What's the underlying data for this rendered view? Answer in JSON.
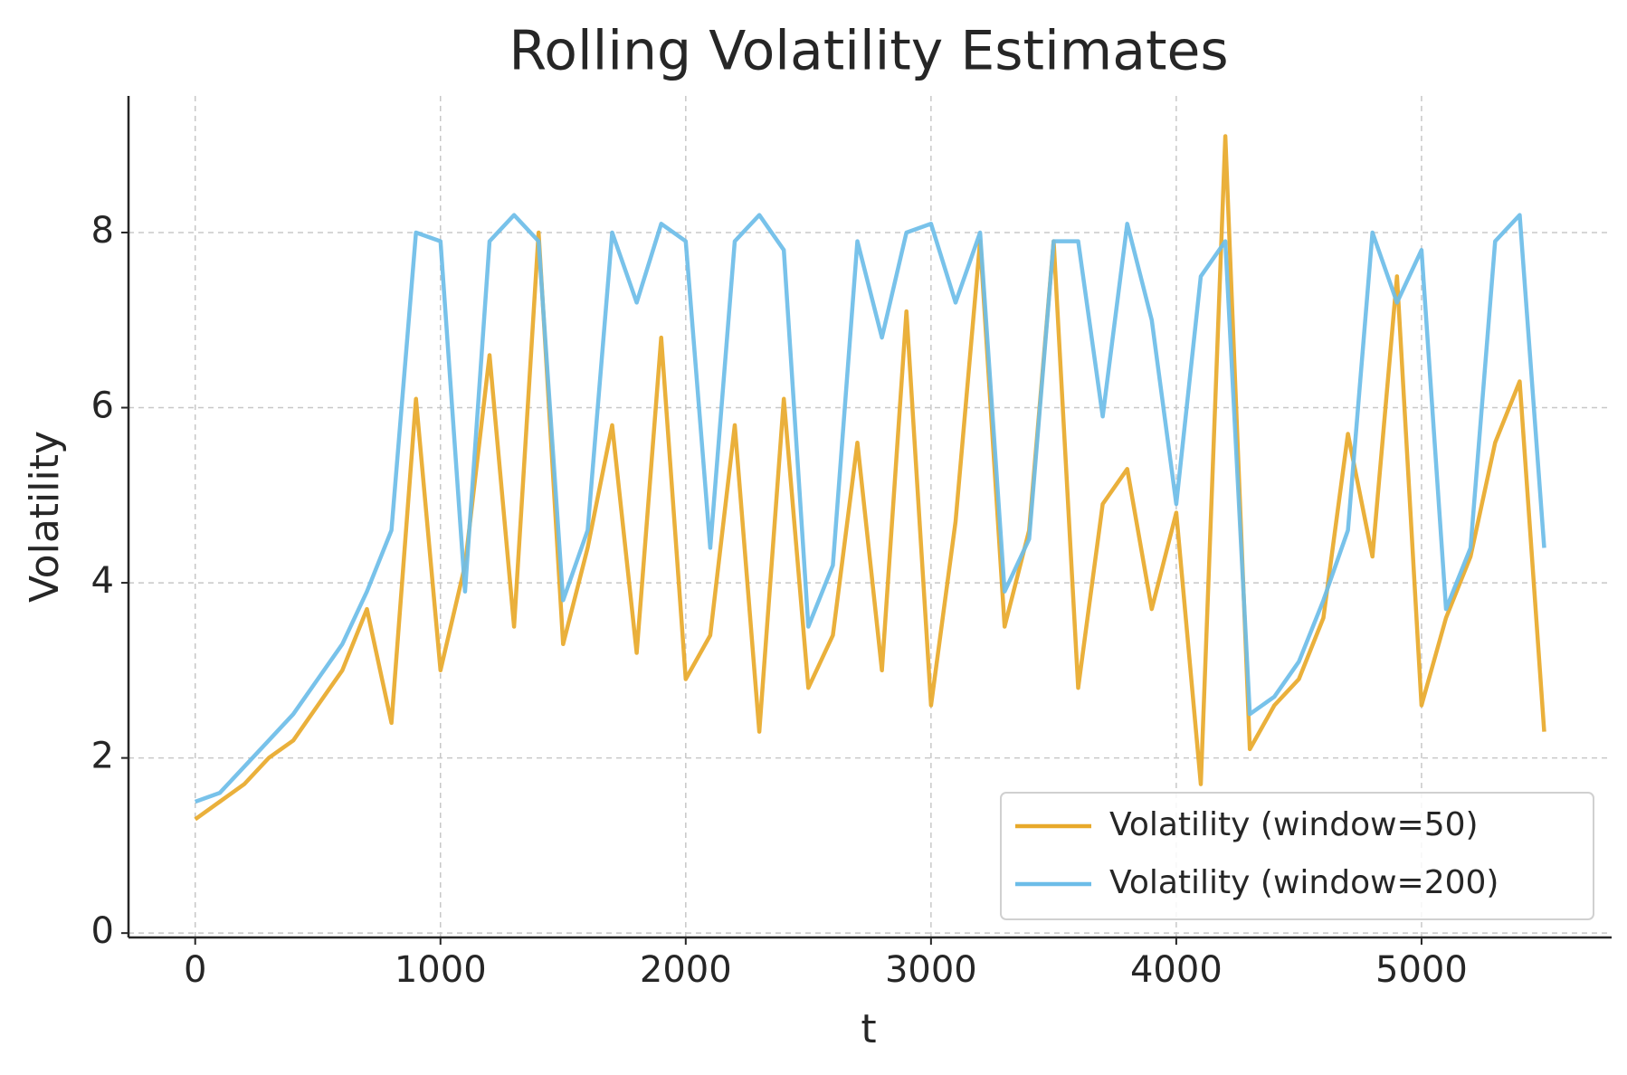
{
  "chart_data": {
    "type": "line",
    "title": "Rolling Volatility Estimates",
    "x_label": "t",
    "y_label": "Volatility",
    "x": [
      0,
      100,
      200,
      300,
      400,
      500,
      600,
      700,
      800,
      900,
      1000,
      1100,
      1200,
      1300,
      1400,
      1500,
      1600,
      1700,
      1800,
      1900,
      2000,
      2100,
      2200,
      2300,
      2400,
      2500,
      2600,
      2700,
      2800,
      2900,
      3000,
      3100,
      3200,
      3300,
      3400,
      3500,
      3600,
      3700,
      3800,
      3900,
      4000,
      4100,
      4200,
      4300,
      4400,
      4500,
      4600,
      4700,
      4800,
      4900,
      5000,
      5100,
      5200,
      5300,
      5400,
      5500
    ],
    "series": [
      {
        "name": "Volatility (window=50)",
        "color": "#E8A92A",
        "values": [
          1.3,
          1.5,
          1.7,
          2.0,
          2.2,
          2.6,
          3.0,
          3.7,
          2.4,
          6.1,
          3.0,
          4.2,
          6.6,
          3.5,
          8.0,
          3.3,
          4.4,
          5.8,
          3.2,
          6.8,
          2.9,
          3.4,
          5.8,
          2.3,
          6.1,
          2.8,
          3.4,
          5.6,
          3.0,
          7.1,
          2.6,
          4.7,
          7.9,
          3.5,
          4.6,
          7.9,
          2.8,
          4.9,
          5.3,
          3.7,
          4.8,
          1.7,
          9.1,
          2.1,
          2.6,
          2.9,
          3.6,
          5.7,
          4.3,
          7.5,
          2.6,
          3.6,
          4.3,
          5.6,
          6.3,
          2.3
        ]
      },
      {
        "name": "Volatility (window=200)",
        "color": "#6CBDE8",
        "values": [
          1.5,
          1.6,
          1.9,
          2.2,
          2.5,
          2.9,
          3.3,
          3.9,
          4.6,
          8.0,
          7.9,
          3.9,
          7.9,
          8.2,
          7.9,
          3.8,
          4.6,
          8.0,
          7.2,
          8.1,
          7.9,
          4.4,
          7.9,
          8.2,
          7.8,
          3.5,
          4.2,
          7.9,
          6.8,
          8.0,
          8.1,
          7.2,
          8.0,
          3.9,
          4.5,
          7.9,
          7.9,
          5.9,
          8.1,
          7.0,
          4.9,
          7.5,
          7.9,
          2.5,
          2.7,
          3.1,
          3.8,
          4.6,
          8.0,
          7.2,
          7.8,
          3.7,
          4.4,
          7.9,
          8.2,
          4.4
        ]
      }
    ],
    "xlim": [
      -272,
      5775
    ],
    "ylim": [
      -0.05,
      9.56
    ],
    "xticks": [
      0,
      1000,
      2000,
      3000,
      4000,
      5000
    ],
    "yticks": [
      0,
      2,
      4,
      6,
      8
    ],
    "grid": true,
    "legend": "lower right"
  }
}
